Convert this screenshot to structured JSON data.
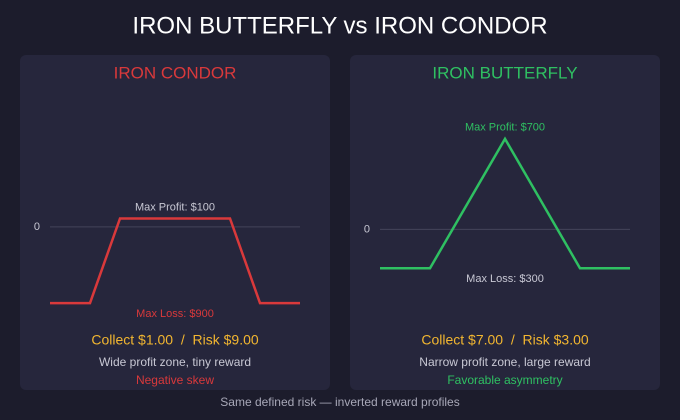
{
  "title": "IRON BUTTERFLY vs IRON CONDOR",
  "footer": "Same defined risk — inverted reward profiles",
  "chart_data": [
    {
      "type": "line",
      "title": "IRON CONDOR",
      "color": "#d9393b",
      "x": [
        0,
        40,
        70,
        180,
        210,
        250
      ],
      "xlim": [
        0,
        250
      ],
      "values": [
        -900,
        -900,
        100,
        100,
        -900,
        -900
      ],
      "ylim": [
        -1100,
        1500
      ],
      "yticks": [
        0
      ],
      "grid": true,
      "annotations": [
        "Max Profit: $100",
        "Max Loss: $900"
      ],
      "summary": "Collect $1.00  /  Risk $9.00",
      "description": "Wide profit zone, tiny reward",
      "verdict": "Negative skew"
    },
    {
      "type": "line",
      "title": "IRON BUTTERFLY",
      "color": "#2fc062",
      "x": [
        0,
        50,
        125,
        200,
        250
      ],
      "xlim": [
        0,
        250
      ],
      "values": [
        -300,
        -300,
        700,
        -300,
        -300
      ],
      "ylim": [
        -700,
        1000
      ],
      "yticks": [
        0
      ],
      "grid": true,
      "annotations": [
        "Max Profit: $700",
        "Max Loss: $300"
      ],
      "summary": "Collect $7.00  /  Risk $3.00",
      "description": "Narrow profit zone, large reward",
      "verdict": "Favorable asymmetry"
    }
  ]
}
